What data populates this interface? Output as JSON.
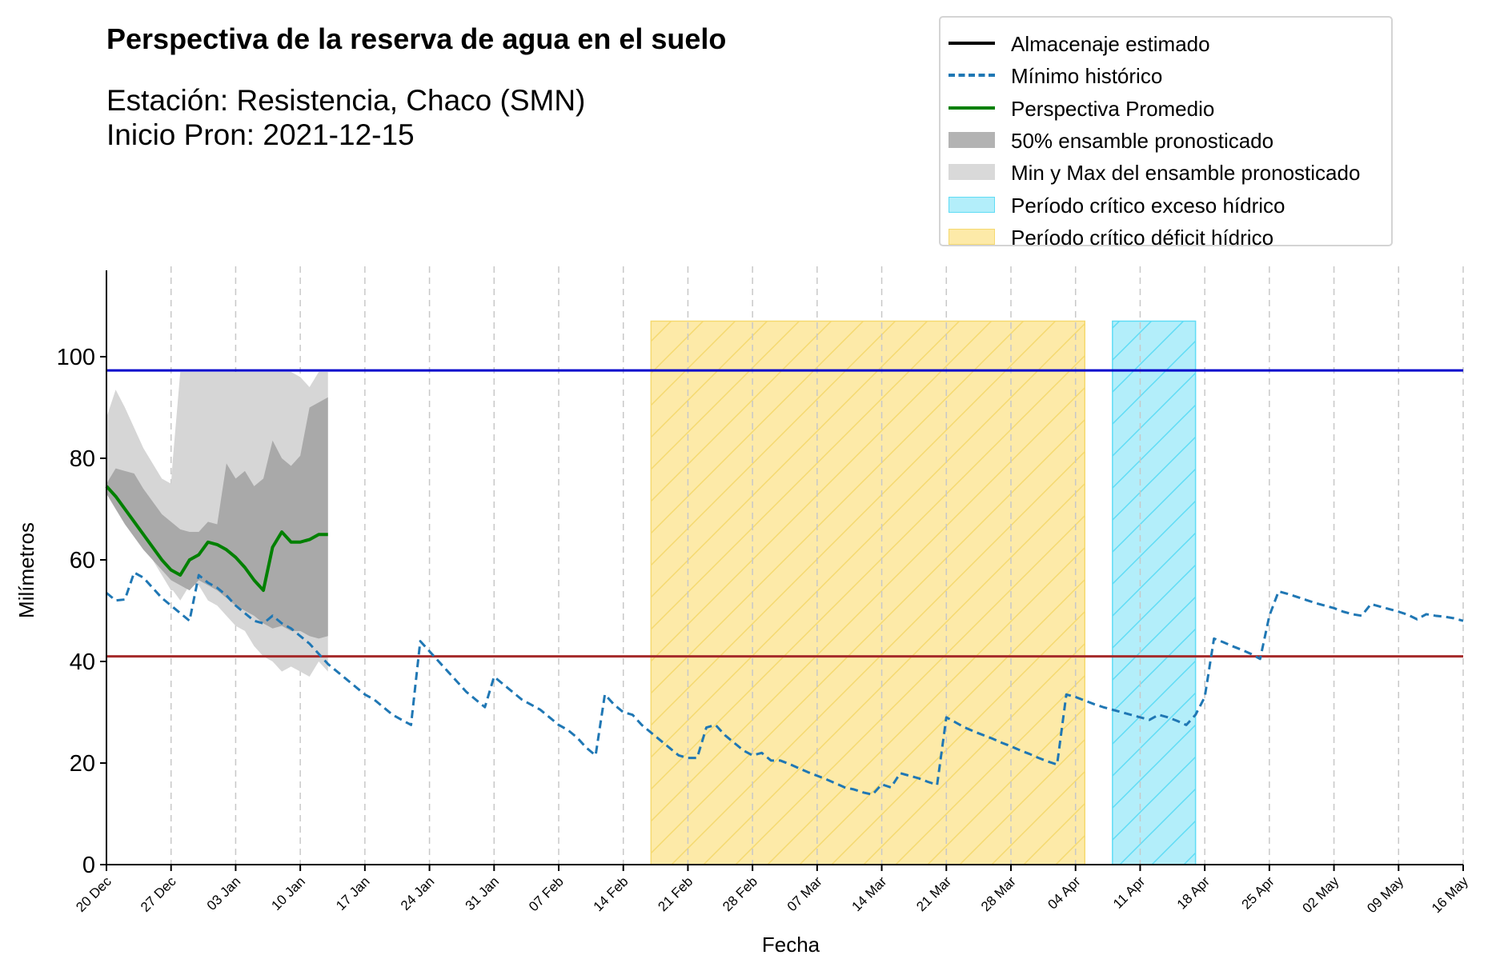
{
  "title": "Perspectiva de la reserva de agua en el suelo",
  "station": "Estación: Resistencia, Chaco (SMN)",
  "start_line": "Inicio Pron: 2021-12-15",
  "legend": [
    {
      "key": "estimated",
      "label": "Almacenaje estimado",
      "kind": "line",
      "color": "#000000",
      "dash": "none"
    },
    {
      "key": "historic_min",
      "label": "Mínimo histórico",
      "kind": "line",
      "color": "#1f77b4",
      "dash": "10,6"
    },
    {
      "key": "avg",
      "label": "Perspectiva Promedio",
      "kind": "line",
      "color": "#008000",
      "dash": "none"
    },
    {
      "key": "ens50",
      "label": "50% ensamble pronosticado",
      "kind": "patch",
      "color": "#b3b3b3"
    },
    {
      "key": "ensminmax",
      "label": "Min y Max del ensamble pronosticado",
      "kind": "patch",
      "color": "#d9d9d9"
    },
    {
      "key": "excess",
      "label": "Período crítico exceso hídrico",
      "kind": "patch",
      "color": "#b3eefa",
      "edge": "#5fdcf5"
    },
    {
      "key": "deficit",
      "label": "Período crítico déficit hídrico",
      "kind": "patch",
      "color": "#fdeaa8",
      "edge": "#f5d970"
    }
  ],
  "chart_data": {
    "type": "line",
    "xlabel": "Fecha",
    "ylabel": "Milímetros",
    "x_start_date": "2021-12-20",
    "xlim": [
      0,
      147
    ],
    "ylim": [
      0,
      117
    ],
    "yticks": [
      0,
      20,
      40,
      60,
      80,
      100
    ],
    "xticks": [
      {
        "d": 0,
        "label": "20 Dec"
      },
      {
        "d": 7,
        "label": "27 Dec"
      },
      {
        "d": 14,
        "label": "03 Jan"
      },
      {
        "d": 21,
        "label": "10 Jan"
      },
      {
        "d": 28,
        "label": "17 Jan"
      },
      {
        "d": 35,
        "label": "24 Jan"
      },
      {
        "d": 42,
        "label": "31 Jan"
      },
      {
        "d": 49,
        "label": "07 Feb"
      },
      {
        "d": 56,
        "label": "14 Feb"
      },
      {
        "d": 63,
        "label": "21 Feb"
      },
      {
        "d": 70,
        "label": "28 Feb"
      },
      {
        "d": 77,
        "label": "07 Mar"
      },
      {
        "d": 84,
        "label": "14 Mar"
      },
      {
        "d": 91,
        "label": "21 Mar"
      },
      {
        "d": 98,
        "label": "28 Mar"
      },
      {
        "d": 105,
        "label": "04 Apr"
      },
      {
        "d": 112,
        "label": "11 Apr"
      },
      {
        "d": 119,
        "label": "18 Apr"
      },
      {
        "d": 126,
        "label": "25 Apr"
      },
      {
        "d": 133,
        "label": "02 May"
      },
      {
        "d": 140,
        "label": "09 May"
      },
      {
        "d": 147,
        "label": "16 May"
      }
    ],
    "hlines": [
      {
        "name": "upper",
        "y": 97.3,
        "color": "#0000cc"
      },
      {
        "name": "lower",
        "y": 41.0,
        "color": "#a52a2a"
      }
    ],
    "periods": [
      {
        "name": "deficit",
        "x0": 59,
        "x1": 106,
        "ymax": 107,
        "color": "#fdeaa8",
        "edge": "#f5d970"
      },
      {
        "name": "excess",
        "x0": 109,
        "x1": 118,
        "ymax": 107,
        "color": "#b3eefa",
        "edge": "#5fdcf5"
      }
    ],
    "ensemble_minmax": {
      "x": [
        0,
        1,
        2,
        3,
        4,
        5,
        6,
        7,
        7.2,
        8,
        9,
        10,
        11,
        12,
        13,
        14,
        15,
        16,
        17,
        18,
        19,
        20,
        21,
        22,
        23,
        24
      ],
      "ymin": [
        75,
        72,
        69,
        66,
        63,
        60,
        57,
        54,
        54,
        52,
        55,
        55,
        52,
        51,
        49,
        47,
        46,
        43,
        41,
        40,
        38,
        39,
        38,
        37,
        40,
        38
      ],
      "ymax": [
        88,
        93.5,
        90,
        86,
        82,
        79,
        76,
        75,
        80,
        97,
        97,
        97,
        97,
        97,
        97,
        97,
        97,
        97,
        97,
        97,
        97,
        97,
        96,
        94,
        97,
        97
      ]
    },
    "ensemble_50": {
      "x": [
        0,
        1,
        2,
        3,
        4,
        5,
        6,
        7,
        8,
        9,
        10,
        11,
        12,
        13,
        14,
        15,
        16,
        17,
        18,
        19,
        20,
        21,
        22,
        23,
        24
      ],
      "ymin": [
        73,
        70,
        67,
        64.5,
        62,
        60,
        58,
        56,
        55,
        54,
        56,
        55,
        54,
        52.5,
        51,
        50,
        49,
        47.5,
        46.5,
        47,
        46,
        46,
        45,
        44.5,
        45
      ],
      "ymax": [
        75,
        78,
        77.5,
        77,
        74,
        71.5,
        69,
        67.5,
        66,
        65.5,
        65.5,
        67.5,
        67,
        79,
        76,
        77.5,
        74.5,
        76,
        83.5,
        80,
        78.5,
        80.5,
        90,
        91,
        92
      ]
    },
    "series": [
      {
        "name": "Mínimo histórico",
        "color": "#1f77b4",
        "dash": "10,6",
        "x": [
          0,
          1,
          2,
          3,
          4,
          5,
          6,
          7,
          8,
          9,
          10,
          11,
          12,
          13,
          14,
          15,
          16,
          17,
          18,
          19,
          20,
          21,
          22,
          23,
          24,
          25,
          26,
          27,
          28,
          29,
          30,
          31,
          32,
          33,
          34,
          35,
          36,
          37,
          38,
          39,
          40,
          41,
          42,
          43,
          44,
          45,
          46,
          47,
          48,
          49,
          50,
          51,
          52,
          53,
          54,
          55,
          56,
          57,
          58,
          59,
          60,
          61,
          62,
          63,
          64,
          65,
          66,
          67,
          68,
          69,
          70,
          71,
          72,
          73,
          74,
          75,
          76,
          77,
          78,
          79,
          80,
          81,
          82,
          83,
          84,
          85,
          86,
          87,
          88,
          89,
          90,
          91,
          92,
          93,
          94,
          95,
          96,
          97,
          98,
          99,
          100,
          101,
          102,
          103,
          104,
          105,
          106,
          107,
          108,
          109,
          110,
          111,
          112,
          113,
          114,
          115,
          116,
          117,
          118,
          119,
          120,
          121,
          122,
          123,
          124,
          125,
          126,
          127,
          128,
          129,
          130,
          131,
          132,
          133,
          134,
          135,
          136,
          137,
          138,
          139,
          140,
          141,
          142,
          143,
          144,
          145,
          146,
          147
        ],
        "y": [
          53.5,
          52,
          52.2,
          57.5,
          56.5,
          54.5,
          52.5,
          51,
          49.5,
          48,
          57,
          55.5,
          54.5,
          53,
          51,
          49.5,
          48,
          47.5,
          49,
          47.5,
          46.5,
          45,
          43.5,
          41.5,
          39.5,
          38,
          36.5,
          35,
          33.5,
          32.5,
          31,
          29.5,
          28.5,
          27.5,
          44,
          42,
          40,
          38,
          36,
          34,
          32.5,
          31,
          37,
          35.5,
          34,
          32.5,
          31.5,
          30.5,
          29,
          27.5,
          26.5,
          25,
          23,
          21.5,
          33.5,
          31.5,
          30,
          29.5,
          27.5,
          26,
          24.5,
          23,
          21.5,
          21,
          21,
          27,
          27.5,
          25.5,
          24,
          22.5,
          21.5,
          22,
          20.5,
          20.5,
          19.8,
          19,
          18.2,
          17.5,
          16.8,
          16,
          15.2,
          14.8,
          14.2,
          13.8,
          15.8,
          15.2,
          18,
          17.5,
          17,
          16.3,
          15.7,
          29,
          28,
          27,
          26.2,
          25.5,
          24.8,
          24,
          23.3,
          22.5,
          21.8,
          21,
          20.3,
          19.7,
          33.5,
          33,
          32.3,
          31.6,
          31,
          30.5,
          30,
          29.5,
          29,
          28.5,
          29.5,
          29,
          28.3,
          27.5,
          29.5,
          33,
          44.5,
          43.8,
          43,
          42.3,
          41.5,
          40.5,
          49,
          53.8,
          53.3,
          52.7,
          52.1,
          51.5,
          51,
          50.5,
          49.8,
          49.3,
          49,
          51.3,
          50.8,
          50.3,
          49.8,
          49.2,
          48.3,
          49.3,
          49,
          48.8,
          48.5,
          48
        ]
      },
      {
        "name": "Perspectiva Promedio",
        "color": "#008000",
        "dash": "none",
        "x": [
          0,
          1,
          2,
          3,
          4,
          5,
          6,
          7,
          8,
          9,
          10,
          11,
          12,
          13,
          14,
          15,
          16,
          17,
          18,
          19,
          20,
          21,
          22,
          23,
          24
        ],
        "y": [
          74.5,
          72.5,
          70,
          67.5,
          65,
          62.5,
          60,
          58,
          57,
          60,
          61,
          63.5,
          63,
          62,
          60.5,
          58.5,
          56,
          54,
          62.5,
          65.5,
          63.5,
          63.5,
          64,
          65,
          65
        ]
      }
    ]
  }
}
